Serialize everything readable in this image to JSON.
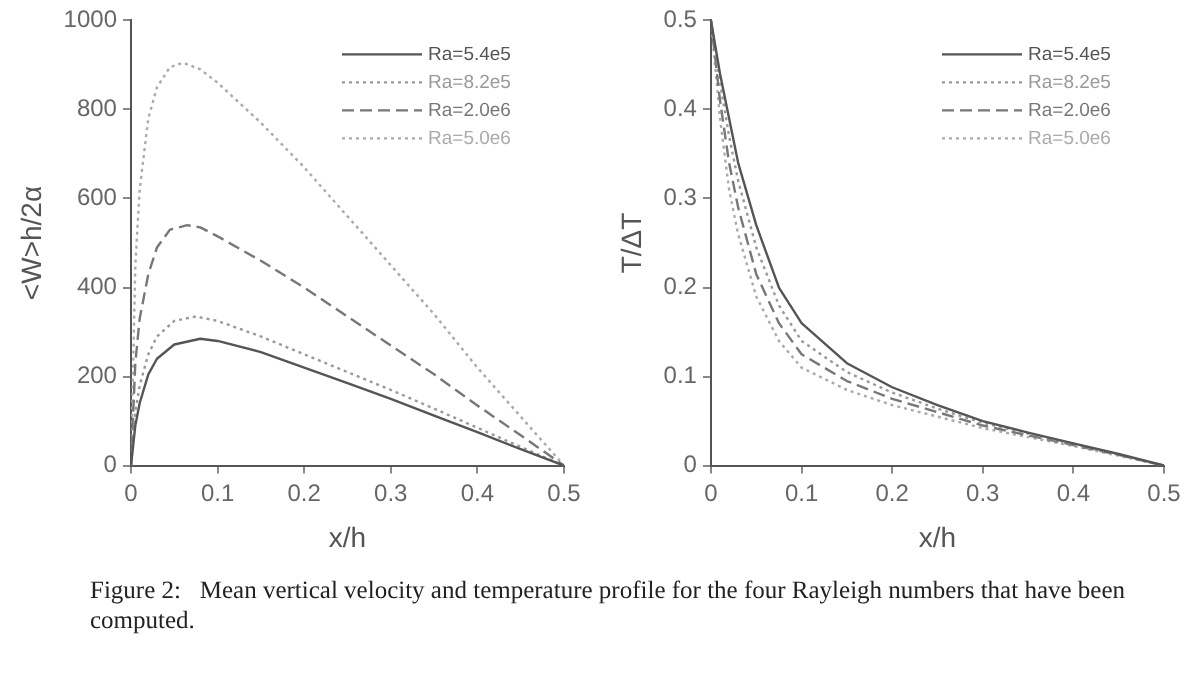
{
  "chart_data": [
    {
      "type": "line",
      "xlabel": "x/h",
      "ylabel": "<W>h/2α",
      "xlim": [
        0,
        0.5
      ],
      "ylim": [
        0,
        1000
      ],
      "xticks": [
        0,
        0.1,
        0.2,
        0.3,
        0.4,
        0.5
      ],
      "yticks": [
        0,
        200,
        400,
        600,
        800,
        1000
      ],
      "grid": false,
      "legend": "top right",
      "marker": "none",
      "series": [
        {
          "name": "Ra=5.4e5",
          "color": "#555555",
          "line_style": "solid",
          "x": [
            0,
            0.005,
            0.01,
            0.02,
            0.03,
            0.05,
            0.08,
            0.1,
            0.15,
            0.2,
            0.25,
            0.3,
            0.35,
            0.4,
            0.45,
            0.5
          ],
          "values": [
            0,
            90,
            140,
            205,
            240,
            272,
            285,
            280,
            255,
            220,
            185,
            150,
            112,
            75,
            37,
            0
          ]
        },
        {
          "name": "Ra=8.2e5",
          "color": "#999999",
          "line_style": "dotted",
          "x": [
            0,
            0.005,
            0.01,
            0.02,
            0.03,
            0.05,
            0.075,
            0.1,
            0.15,
            0.2,
            0.25,
            0.3,
            0.35,
            0.4,
            0.45,
            0.5
          ],
          "values": [
            0,
            120,
            180,
            250,
            290,
            325,
            335,
            325,
            290,
            250,
            210,
            170,
            128,
            85,
            42,
            0
          ]
        },
        {
          "name": "Ra=2.0e6",
          "color": "#777777",
          "line_style": "dashed",
          "x": [
            0,
            0.005,
            0.01,
            0.02,
            0.03,
            0.045,
            0.065,
            0.08,
            0.1,
            0.15,
            0.2,
            0.25,
            0.3,
            0.35,
            0.4,
            0.45,
            0.5
          ],
          "values": [
            0,
            230,
            330,
            430,
            490,
            530,
            540,
            535,
            515,
            460,
            400,
            335,
            270,
            205,
            135,
            68,
            0
          ]
        },
        {
          "name": "Ra=5.0e6",
          "color": "#aaaaaa",
          "line_style": "dotted",
          "x": [
            0,
            0.005,
            0.01,
            0.02,
            0.03,
            0.045,
            0.06,
            0.08,
            0.1,
            0.15,
            0.2,
            0.25,
            0.3,
            0.35,
            0.4,
            0.45,
            0.5
          ],
          "values": [
            0,
            450,
            620,
            780,
            850,
            895,
            905,
            890,
            860,
            770,
            670,
            560,
            450,
            340,
            220,
            110,
            0
          ]
        }
      ]
    },
    {
      "type": "line",
      "xlabel": "x/h",
      "ylabel": "T/ΔT",
      "xlim": [
        0,
        0.5
      ],
      "ylim": [
        0,
        0.5
      ],
      "xticks": [
        0,
        0.1,
        0.2,
        0.3,
        0.4,
        0.5
      ],
      "yticks": [
        0,
        0.1,
        0.2,
        0.3,
        0.4,
        0.5
      ],
      "grid": false,
      "legend": "top right",
      "marker": "none",
      "annotations": [
        "Figure 2:   Mean vertical velocity and temperature profile for the four Rayleigh numbers that have been computed."
      ],
      "series": [
        {
          "name": "Ra=5.4e5",
          "color": "#555555",
          "line_style": "solid",
          "x": [
            0,
            0.01,
            0.02,
            0.03,
            0.05,
            0.075,
            0.1,
            0.15,
            0.2,
            0.25,
            0.3,
            0.35,
            0.4,
            0.45,
            0.5
          ],
          "values": [
            0.5,
            0.44,
            0.39,
            0.34,
            0.27,
            0.2,
            0.16,
            0.115,
            0.088,
            0.068,
            0.05,
            0.037,
            0.025,
            0.013,
            0
          ]
        },
        {
          "name": "Ra=8.2e5",
          "color": "#999999",
          "line_style": "dotted",
          "x": [
            0,
            0.01,
            0.02,
            0.03,
            0.05,
            0.075,
            0.1,
            0.15,
            0.2,
            0.25,
            0.3,
            0.35,
            0.4,
            0.45,
            0.5
          ],
          "values": [
            0.5,
            0.43,
            0.37,
            0.32,
            0.245,
            0.18,
            0.14,
            0.105,
            0.082,
            0.064,
            0.048,
            0.036,
            0.024,
            0.012,
            0
          ]
        },
        {
          "name": "Ra=2.0e6",
          "color": "#777777",
          "line_style": "dashed",
          "x": [
            0,
            0.01,
            0.02,
            0.03,
            0.05,
            0.075,
            0.1,
            0.15,
            0.2,
            0.25,
            0.3,
            0.35,
            0.4,
            0.45,
            0.5
          ],
          "values": [
            0.5,
            0.41,
            0.34,
            0.29,
            0.215,
            0.16,
            0.125,
            0.095,
            0.075,
            0.06,
            0.045,
            0.034,
            0.023,
            0.012,
            0
          ]
        },
        {
          "name": "Ra=5.0e6",
          "color": "#aaaaaa",
          "line_style": "dotted",
          "x": [
            0,
            0.01,
            0.02,
            0.03,
            0.05,
            0.075,
            0.1,
            0.15,
            0.2,
            0.25,
            0.3,
            0.35,
            0.4,
            0.45,
            0.5
          ],
          "values": [
            0.5,
            0.39,
            0.31,
            0.26,
            0.19,
            0.14,
            0.11,
            0.085,
            0.068,
            0.055,
            0.042,
            0.032,
            0.022,
            0.011,
            0
          ]
        }
      ]
    }
  ]
}
